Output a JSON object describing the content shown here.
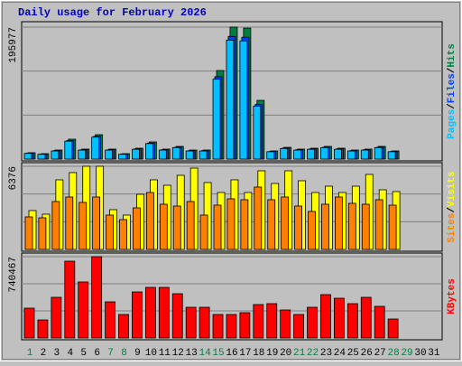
{
  "title": "Daily usage for February 2026",
  "chart_data": [
    {
      "type": "bar",
      "ylim": [
        0,
        195977
      ],
      "yticks": [
        195977
      ],
      "legend_separator": "/",
      "series": [
        {
          "name": "Hits",
          "color": "#008040",
          "values": [
            9400,
            8000,
            13400,
            29500,
            14800,
            36200,
            14800,
            8000,
            16100,
            25500,
            14800,
            18800,
            13400,
            13400,
            131500,
            195977,
            194500,
            87200,
            12100,
            17400,
            14800,
            16100,
            18800,
            16100,
            13400,
            14800,
            18800,
            12100,
            null,
            null,
            null
          ]
        },
        {
          "name": "Files",
          "color": "#0040ff",
          "values": [
            8700,
            7400,
            12400,
            27400,
            13700,
            33600,
            13700,
            7400,
            15000,
            23700,
            13700,
            17500,
            12400,
            12400,
            122300,
            182200,
            180900,
            81100,
            11200,
            16200,
            13700,
            15000,
            17500,
            15000,
            12400,
            13700,
            17500,
            11200,
            null,
            null,
            null
          ]
        },
        {
          "name": "Pages",
          "color": "#00c0ff",
          "values": [
            8400,
            7100,
            12000,
            26600,
            13300,
            32600,
            13300,
            7100,
            14500,
            23000,
            13300,
            17000,
            12000,
            12000,
            118600,
            176700,
            175500,
            78700,
            10900,
            15700,
            13300,
            14500,
            17000,
            14500,
            12000,
            13300,
            17000,
            10900,
            null,
            null,
            null
          ]
        }
      ]
    },
    {
      "type": "bar",
      "ylim": [
        0,
        6376
      ],
      "yticks": [
        6376
      ],
      "legend_separator": "/",
      "series": [
        {
          "name": "Visits",
          "color": "#ffff00",
          "values": [
            2980,
            2703,
            5337,
            5891,
            6376,
            6376,
            3049,
            2634,
            4228,
            5337,
            4921,
            5683,
            6237,
            5129,
            4366,
            5337,
            4366,
            6030,
            5059,
            6030,
            5267,
            4366,
            4851,
            4366,
            4851,
            5752,
            4574,
            4436,
            null,
            null,
            null
          ]
        },
        {
          "name": "Sites",
          "color": "#ff8000",
          "values": [
            2495,
            2426,
            3673,
            4020,
            3604,
            4020,
            2634,
            2287,
            3188,
            4366,
            3465,
            3327,
            3673,
            2634,
            3396,
            3881,
            3812,
            4782,
            3812,
            4020,
            3327,
            2911,
            3465,
            4020,
            3535,
            3465,
            3812,
            3396,
            null,
            null,
            null
          ]
        }
      ]
    },
    {
      "type": "bar",
      "ylim": [
        0,
        740467
      ],
      "yticks": [
        740467
      ],
      "categories": [
        "1",
        "2",
        "3",
        "4",
        "5",
        "6",
        "7",
        "8",
        "9",
        "10",
        "11",
        "12",
        "13",
        "14",
        "15",
        "16",
        "17",
        "18",
        "19",
        "20",
        "21",
        "22",
        "23",
        "24",
        "25",
        "26",
        "27",
        "28",
        "29",
        "30",
        "31"
      ],
      "category_colors": [
        "#008040",
        "#000000",
        "#000000",
        "#000000",
        "#000000",
        "#000000",
        "#008040",
        "#008040",
        "#000000",
        "#000000",
        "#000000",
        "#000000",
        "#000000",
        "#008040",
        "#008040",
        "#000000",
        "#000000",
        "#000000",
        "#000000",
        "#000000",
        "#008040",
        "#008040",
        "#000000",
        "#000000",
        "#000000",
        "#000000",
        "#000000",
        "#008040",
        "#008040",
        "#000000",
        "#000000"
      ],
      "series": [
        {
          "name": "KBytes",
          "color": "#ff0000",
          "values": [
            271505,
            164548,
            370234,
            699330,
            510100,
            740467,
            329097,
            213913,
            419598,
            460735,
            460735,
            403143,
            279732,
            279732,
            213913,
            213913,
            230367,
            304414,
            312641,
            255050,
            213913,
            279732,
            394916,
            362006,
            312641,
            370234,
            287960,
            172774,
            null,
            null,
            null
          ]
        }
      ]
    }
  ]
}
